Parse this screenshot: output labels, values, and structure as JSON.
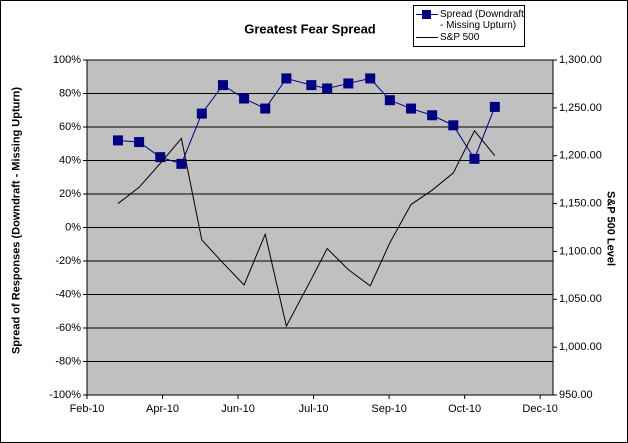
{
  "chart_data": {
    "type": "line",
    "title": "Greatest Fear Spread",
    "y_label": "Spread of Responses (Downdraft - Missing Upturn)",
    "y2_label": "S&P 500 Level",
    "x": [
      0.41,
      0.69,
      0.97,
      1.25,
      1.52,
      1.8,
      2.08,
      2.36,
      2.64,
      2.97,
      3.18,
      3.46,
      3.75,
      4.01,
      4.29,
      4.57,
      4.85,
      5.13,
      5.4
    ],
    "xlim": [
      0,
      6.17
    ],
    "xticks": [
      {
        "value": 0,
        "label": "Feb-10"
      },
      {
        "value": 1,
        "label": "Apr-10"
      },
      {
        "value": 2,
        "label": "Jun-10"
      },
      {
        "value": 3,
        "label": "Jul-10"
      },
      {
        "value": 4,
        "label": "Sep-10"
      },
      {
        "value": 5,
        "label": "Oct-10"
      },
      {
        "value": 6,
        "label": "Dec-10"
      }
    ],
    "ylim": [
      -100,
      100
    ],
    "yticks": [
      {
        "value": -100,
        "label": "-100%"
      },
      {
        "value": -80,
        "label": "-80%"
      },
      {
        "value": -60,
        "label": "-60%"
      },
      {
        "value": -40,
        "label": "-40%"
      },
      {
        "value": -20,
        "label": "-20%"
      },
      {
        "value": 0,
        "label": "0%"
      },
      {
        "value": 20,
        "label": "20%"
      },
      {
        "value": 40,
        "label": "40%"
      },
      {
        "value": 60,
        "label": "60%"
      },
      {
        "value": 80,
        "label": "80%"
      },
      {
        "value": 100,
        "label": "100%"
      }
    ],
    "y2lim": [
      950,
      1300
    ],
    "y2ticks": [
      {
        "value": 950,
        "label": "950.00"
      },
      {
        "value": 1000,
        "label": "1,000.00"
      },
      {
        "value": 1050,
        "label": "1,050.00"
      },
      {
        "value": 1100,
        "label": "1,100.00"
      },
      {
        "value": 1150,
        "label": "1,150.00"
      },
      {
        "value": 1200,
        "label": "1,200.00"
      },
      {
        "value": 1250,
        "label": "1,250.00"
      },
      {
        "value": 1300,
        "label": "1,300.00"
      }
    ],
    "grid": true,
    "legend": "upper-right",
    "series": [
      {
        "name": "Spread (Downdraft - Missing Upturn)",
        "color": "#000080",
        "marker": "square",
        "values": [
          52,
          51,
          42,
          38,
          68,
          85,
          77,
          71,
          89,
          85,
          83,
          86,
          89,
          76,
          71,
          67,
          61,
          41,
          72
        ]
      },
      {
        "name": "S&P 500",
        "color": "#000000",
        "axis": "y2",
        "marker": "none",
        "values": [
          1150,
          1167,
          1192,
          1218,
          1112,
          1088,
          1065,
          1118,
          1022,
          1071,
          1103,
          1081,
          1064,
          1109,
          1149,
          1164,
          1182,
          1226,
          1200
        ]
      }
    ]
  }
}
